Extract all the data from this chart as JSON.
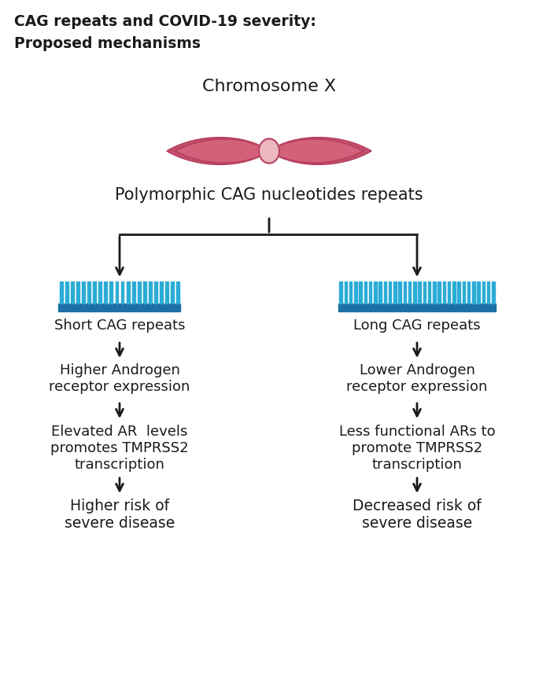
{
  "title_line1": "CAG repeats and COVID-19 severity:",
  "title_line2": "Proposed mechanisms",
  "chrom_label": "Chromosome X",
  "poly_label": "Polymorphic CAG nucleotides repeats",
  "left_col": {
    "cag_label": "Short CAG repeats",
    "step2": "Higher Androgen\nreceptor expression",
    "step3": "Elevated AR  levels\npromotes TMPRSS2\ntranscription",
    "step4": "Higher risk of\nsevere disease",
    "comb_n": 22
  },
  "right_col": {
    "cag_label": "Long CAG repeats",
    "step2": "Lower Androgen\nreceptor expression",
    "step3": "Less functional ARs to\npromote TMPRSS2\ntranscription",
    "step4": "Decreased risk of\nsevere disease",
    "comb_n": 32
  },
  "bg_color": "#ffffff",
  "text_color": "#1a1a1a",
  "arrow_color": "#1a1a1a",
  "comb_bar_color": "#1e6fa5",
  "comb_teeth_color": "#2bacd6",
  "chrom_body_color": "#d4617a",
  "chrom_shadow_color": "#c45070",
  "chrom_centro_color": "#ebb8c0",
  "chrom_outline_color": "#b84060"
}
